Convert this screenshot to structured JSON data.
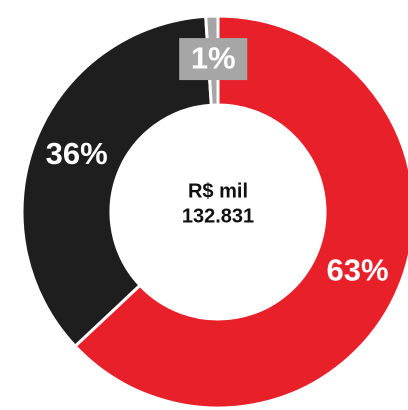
{
  "chart_data": {
    "type": "donut",
    "categories": [
      null,
      null,
      null
    ],
    "values": [
      63,
      36,
      1
    ],
    "value_labels": [
      "63%",
      "36%",
      "1%"
    ],
    "colors": [
      "#e8202a",
      "#1e1e1e",
      "#a6a6a6"
    ],
    "center_text": [
      "R$ mil",
      "132.831"
    ]
  }
}
